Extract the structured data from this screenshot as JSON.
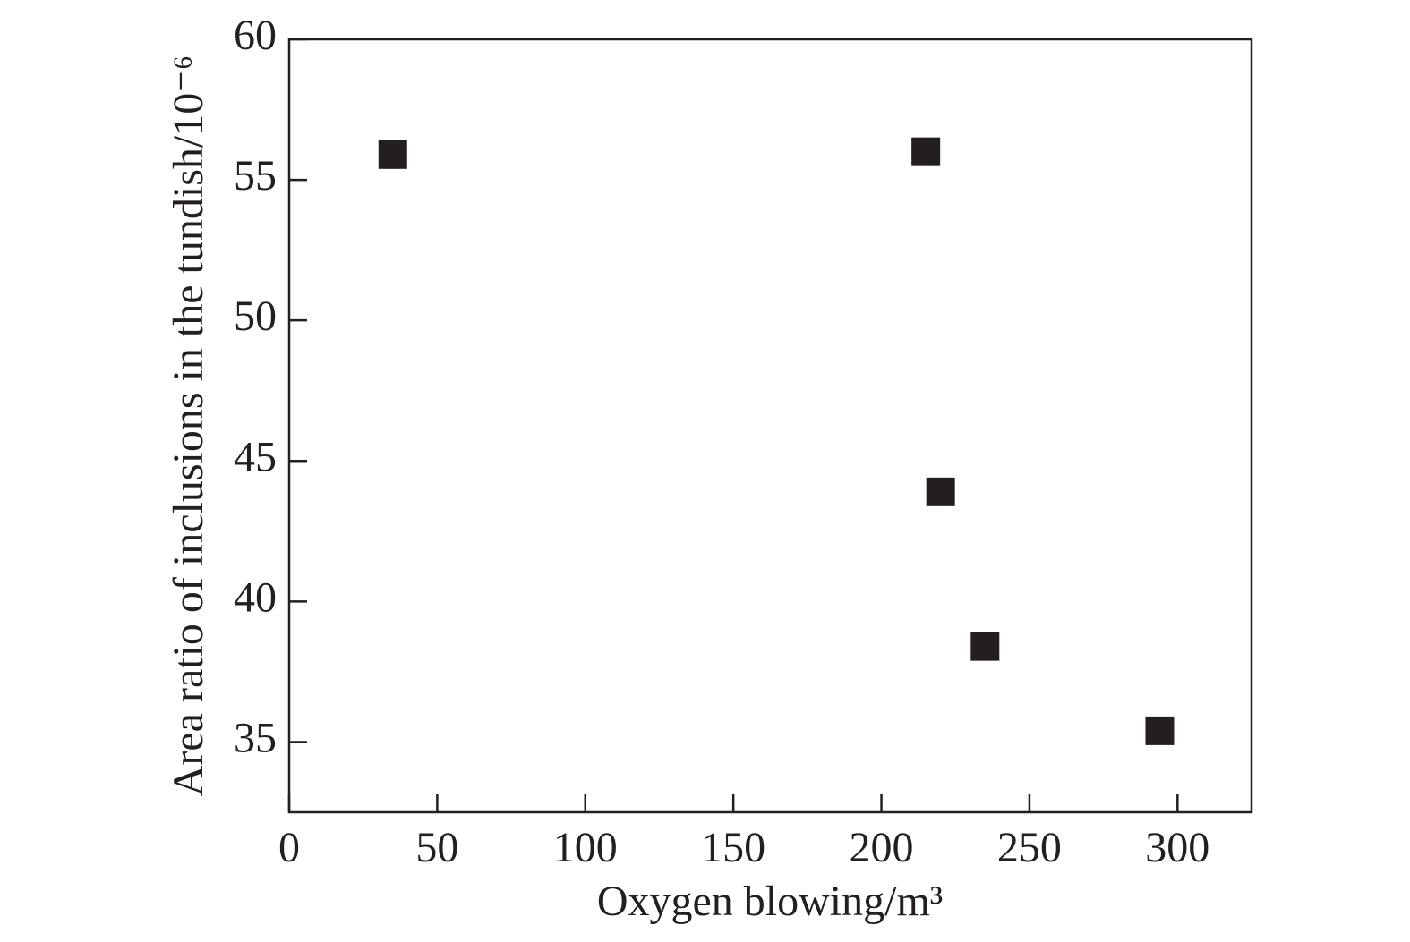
{
  "chart_data": {
    "type": "scatter",
    "xlabel": "Oxygen blowing/m³",
    "ylabel": "Area ratio of inclusions in the tundish/10⁻⁶",
    "x": [
      35,
      215,
      220,
      235,
      294
    ],
    "values": [
      55.9,
      56.0,
      43.9,
      38.4,
      35.4
    ],
    "color": "#231f20",
    "xlim": [
      0,
      325
    ],
    "xticks": [
      0,
      50,
      100,
      150,
      200,
      250,
      300
    ],
    "ylim": [
      32.5,
      60
    ],
    "yticks": [
      35,
      40,
      45,
      50,
      55,
      60
    ]
  }
}
